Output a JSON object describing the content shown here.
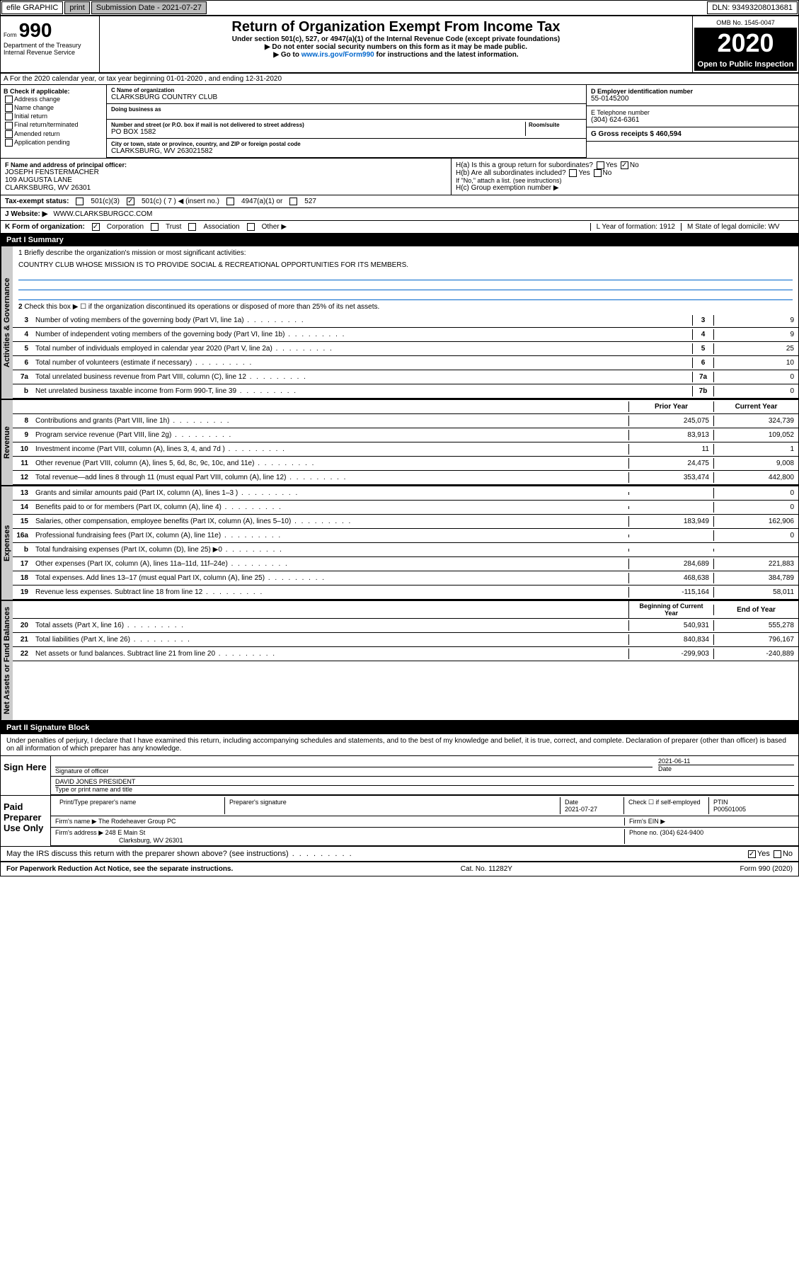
{
  "topbar": {
    "efile": "efile GRAPHIC",
    "print": "print",
    "submission_label": "Submission Date - 2021-07-27",
    "dln": "DLN: 93493208013681"
  },
  "header": {
    "form_label": "Form",
    "form_number": "990",
    "main_title": "Return of Organization Exempt From Income Tax",
    "subtitle": "Under section 501(c), 527, or 4947(a)(1) of the Internal Revenue Code (except private foundations)",
    "note1": "▶ Do not enter social security numbers on this form as it may be made public.",
    "note2_pre": "▶ Go to ",
    "note2_link": "www.irs.gov/Form990",
    "note2_post": " for instructions and the latest information.",
    "omb": "OMB No. 1545-0047",
    "year": "2020",
    "open_public": "Open to Public Inspection",
    "dept1": "Department of the Treasury",
    "dept2": "Internal Revenue Service"
  },
  "section_a": "A For the 2020 calendar year, or tax year beginning 01-01-2020    , and ending 12-31-2020",
  "col_b": {
    "header": "B Check if applicable:",
    "items": [
      "Address change",
      "Name change",
      "Initial return",
      "Final return/terminated",
      "Amended return",
      "Application pending"
    ]
  },
  "org": {
    "name_label": "C Name of organization",
    "name": "CLARKSBURG COUNTRY CLUB",
    "dba_label": "Doing business as",
    "addr_label": "Number and street (or P.O. box if mail is not delivered to street address)",
    "room_label": "Room/suite",
    "addr": "PO BOX 1582",
    "city_label": "City or town, state or province, country, and ZIP or foreign postal code",
    "city": "CLARKSBURG, WV  263021582"
  },
  "right": {
    "ein_label": "D Employer identification number",
    "ein": "55-0145200",
    "phone_label": "E Telephone number",
    "phone": "(304) 624-6361",
    "gross_label": "G Gross receipts $ 460,594"
  },
  "officer": {
    "label": "F  Name and address of principal officer:",
    "name": "JOSEPH FENSTERMACHER",
    "addr1": "109 AUGUSTA LANE",
    "addr2": "CLARKSBURG, WV  26301"
  },
  "h": {
    "ha_label": "H(a)  Is this a group return for subordinates?",
    "hb_label": "H(b)  Are all subordinates included?",
    "hb_note": "If \"No,\" attach a list. (see instructions)",
    "hc_label": "H(c)  Group exemption number ▶"
  },
  "tax_status": {
    "label": "Tax-exempt status:",
    "opt1": "501(c)(3)",
    "opt2": "501(c) ( 7 ) ◀ (insert no.)",
    "opt3": "4947(a)(1) or",
    "opt4": "527"
  },
  "website": {
    "label": "J   Website: ▶",
    "value": "WWW.CLARKSBURGCC.COM"
  },
  "k_row": {
    "label": "K Form of organization:",
    "opts": [
      "Corporation",
      "Trust",
      "Association",
      "Other ▶"
    ],
    "l_label": "L Year of formation: 1912",
    "m_label": "M State of legal domicile: WV"
  },
  "part1": {
    "header": "Part I      Summary",
    "q1_label": "1  Briefly describe the organization's mission or most significant activities:",
    "mission": "COUNTRY CLUB WHOSE MISSION IS TO PROVIDE SOCIAL & RECREATIONAL OPPORTUNITIES FOR ITS MEMBERS.",
    "q2": "Check this box ▶ ☐  if the organization discontinued its operations or disposed of more than 25% of its net assets.",
    "side_gov": "Activities & Governance",
    "side_rev": "Revenue",
    "side_exp": "Expenses",
    "side_net": "Net Assets or Fund Balances"
  },
  "gov_rows": [
    {
      "n": "3",
      "label": "Number of voting members of the governing body (Part VI, line 1a)",
      "col": "3",
      "val": "9"
    },
    {
      "n": "4",
      "label": "Number of independent voting members of the governing body (Part VI, line 1b)",
      "col": "4",
      "val": "9"
    },
    {
      "n": "5",
      "label": "Total number of individuals employed in calendar year 2020 (Part V, line 2a)",
      "col": "5",
      "val": "25"
    },
    {
      "n": "6",
      "label": "Total number of volunteers (estimate if necessary)",
      "col": "6",
      "val": "10"
    },
    {
      "n": "7a",
      "label": "Total unrelated business revenue from Part VIII, column (C), line 12",
      "col": "7a",
      "val": "0"
    },
    {
      "n": "b",
      "label": "Net unrelated business taxable income from Form 990-T, line 39",
      "col": "7b",
      "val": "0"
    }
  ],
  "year_headers": {
    "prior": "Prior Year",
    "current": "Current Year"
  },
  "rev_rows": [
    {
      "n": "8",
      "label": "Contributions and grants (Part VIII, line 1h)",
      "prior": "245,075",
      "curr": "324,739"
    },
    {
      "n": "9",
      "label": "Program service revenue (Part VIII, line 2g)",
      "prior": "83,913",
      "curr": "109,052"
    },
    {
      "n": "10",
      "label": "Investment income (Part VIII, column (A), lines 3, 4, and 7d )",
      "prior": "11",
      "curr": "1"
    },
    {
      "n": "11",
      "label": "Other revenue (Part VIII, column (A), lines 5, 6d, 8c, 9c, 10c, and 11e)",
      "prior": "24,475",
      "curr": "9,008"
    },
    {
      "n": "12",
      "label": "Total revenue—add lines 8 through 11 (must equal Part VIII, column (A), line 12)",
      "prior": "353,474",
      "curr": "442,800"
    }
  ],
  "exp_rows": [
    {
      "n": "13",
      "label": "Grants and similar amounts paid (Part IX, column (A), lines 1–3 )",
      "prior": "",
      "curr": "0"
    },
    {
      "n": "14",
      "label": "Benefits paid to or for members (Part IX, column (A), line 4)",
      "prior": "",
      "curr": "0"
    },
    {
      "n": "15",
      "label": "Salaries, other compensation, employee benefits (Part IX, column (A), lines 5–10)",
      "prior": "183,949",
      "curr": "162,906"
    },
    {
      "n": "16a",
      "label": "Professional fundraising fees (Part IX, column (A), line 11e)",
      "prior": "",
      "curr": "0"
    },
    {
      "n": "b",
      "label": "Total fundraising expenses (Part IX, column (D), line 25) ▶0",
      "prior": "",
      "curr": ""
    },
    {
      "n": "17",
      "label": "Other expenses (Part IX, column (A), lines 11a–11d, 11f–24e)",
      "prior": "284,689",
      "curr": "221,883"
    },
    {
      "n": "18",
      "label": "Total expenses. Add lines 13–17 (must equal Part IX, column (A), line 25)",
      "prior": "468,638",
      "curr": "384,789"
    },
    {
      "n": "19",
      "label": "Revenue less expenses. Subtract line 18 from line 12",
      "prior": "-115,164",
      "curr": "58,011"
    }
  ],
  "net_headers": {
    "begin": "Beginning of Current Year",
    "end": "End of Year"
  },
  "net_rows": [
    {
      "n": "20",
      "label": "Total assets (Part X, line 16)",
      "prior": "540,931",
      "curr": "555,278"
    },
    {
      "n": "21",
      "label": "Total liabilities (Part X, line 26)",
      "prior": "840,834",
      "curr": "796,167"
    },
    {
      "n": "22",
      "label": "Net assets or fund balances. Subtract line 21 from line 20",
      "prior": "-299,903",
      "curr": "-240,889"
    }
  ],
  "part2": {
    "header": "Part II     Signature Block",
    "perjury": "Under penalties of perjury, I declare that I have examined this return, including accompanying schedules and statements, and to the best of my knowledge and belief, it is true, correct, and complete. Declaration of preparer (other than officer) is based on all information of which preparer has any knowledge."
  },
  "sign": {
    "label": "Sign Here",
    "sig_label": "Signature of officer",
    "date": "2021-06-11",
    "date_label": "Date",
    "name": "DAVID JONES PRESIDENT",
    "name_label": "Type or print name and title"
  },
  "preparer": {
    "label": "Paid Preparer Use Only",
    "print_label": "Print/Type preparer's name",
    "sig_label": "Preparer's signature",
    "date_label": "Date",
    "date": "2021-07-27",
    "check_label": "Check ☐ if self-employed",
    "ptin_label": "PTIN",
    "ptin": "P00501005",
    "firm_name_label": "Firm's name    ▶",
    "firm_name": "The Rodeheaver Group PC",
    "firm_ein_label": "Firm's EIN ▶",
    "firm_addr_label": "Firm's address ▶",
    "firm_addr": "248 E Main St",
    "firm_city": "Clarksburg, WV  26301",
    "phone_label": "Phone no. (304) 624-9400"
  },
  "discuss": "May the IRS discuss this return with the preparer shown above? (see instructions)",
  "footer": {
    "paperwork": "For Paperwork Reduction Act Notice, see the separate instructions.",
    "cat": "Cat. No. 11282Y",
    "form": "Form 990 (2020)"
  }
}
